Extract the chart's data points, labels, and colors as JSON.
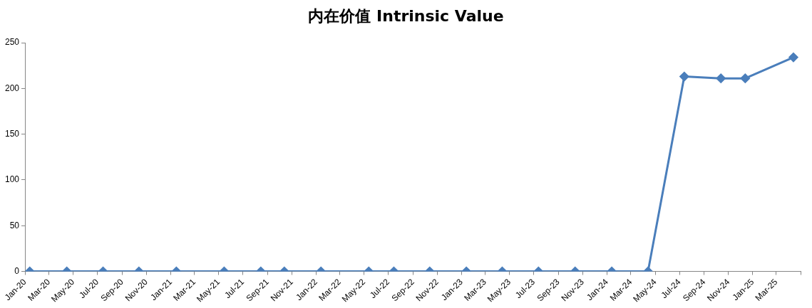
{
  "chart_data": {
    "type": "line",
    "title": "内在价值 Intrinsic Value",
    "x": [
      "2020-01-13",
      "2020-04-15",
      "2020-07-15",
      "2020-10-13",
      "2021-01-15",
      "2021-05-15",
      "2021-08-15",
      "2021-10-13",
      "2022-01-13",
      "2022-05-13",
      "2022-07-15",
      "2022-10-13",
      "2023-01-13",
      "2023-04-13",
      "2023-07-13",
      "2023-10-13",
      "2024-01-13",
      "2024-04-13",
      "2024-07-13",
      "2024-10-13",
      "2024-12-13",
      "2025-04-13"
    ],
    "series": [
      {
        "color": "#4a7ebb",
        "values": [
          0,
          0,
          0,
          0,
          0,
          0,
          0,
          0,
          0,
          0,
          0,
          0,
          0,
          0,
          0,
          0,
          0,
          0,
          213,
          211,
          211,
          234
        ]
      }
    ],
    "xlim": [
      "2020-01",
      "2025-05"
    ],
    "xticks": [
      {
        "value": "2020-01",
        "label": "Jan-20"
      },
      {
        "value": "2020-03",
        "label": "Mar-20"
      },
      {
        "value": "2020-05",
        "label": "May-20"
      },
      {
        "value": "2020-07",
        "label": "Jul-20"
      },
      {
        "value": "2020-09",
        "label": "Sep-20"
      },
      {
        "value": "2020-11",
        "label": "Nov-20"
      },
      {
        "value": "2021-01",
        "label": "Jan-21"
      },
      {
        "value": "2021-03",
        "label": "Mar-21"
      },
      {
        "value": "2021-05",
        "label": "May-21"
      },
      {
        "value": "2021-07",
        "label": "Jul-21"
      },
      {
        "value": "2021-09",
        "label": "Sep-21"
      },
      {
        "value": "2021-11",
        "label": "Nov-21"
      },
      {
        "value": "2022-01",
        "label": "Jan-22"
      },
      {
        "value": "2022-03",
        "label": "Mar-22"
      },
      {
        "value": "2022-05",
        "label": "May-22"
      },
      {
        "value": "2022-07",
        "label": "Jul-22"
      },
      {
        "value": "2022-09",
        "label": "Sep-22"
      },
      {
        "value": "2022-11",
        "label": "Nov-22"
      },
      {
        "value": "2023-01",
        "label": "Jan-23"
      },
      {
        "value": "2023-03",
        "label": "Mar-23"
      },
      {
        "value": "2023-05",
        "label": "May-23"
      },
      {
        "value": "2023-07",
        "label": "Jul-23"
      },
      {
        "value": "2023-09",
        "label": "Sep-23"
      },
      {
        "value": "2023-11",
        "label": "Nov-23"
      },
      {
        "value": "2024-01",
        "label": "Jan-24"
      },
      {
        "value": "2024-03",
        "label": "Mar-24"
      },
      {
        "value": "2024-05",
        "label": "May-24"
      },
      {
        "value": "2024-07",
        "label": "Jul-24"
      },
      {
        "value": "2024-09",
        "label": "Sep-24"
      },
      {
        "value": "2024-11",
        "label": "Nov-24"
      },
      {
        "value": "2025-01",
        "label": "Jan-25"
      },
      {
        "value": "2025-03",
        "label": "Mar-25"
      },
      {
        "value": "2025-05",
        "label": null
      }
    ],
    "ylim": [
      0,
      250
    ],
    "yticks": [
      0,
      50,
      100,
      150,
      200,
      250
    ],
    "grid": false,
    "legend": false,
    "marker": "diamond",
    "line_style": "solid"
  }
}
